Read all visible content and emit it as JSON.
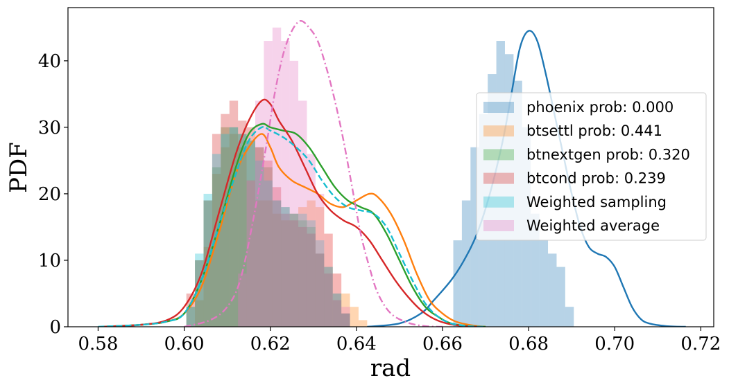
{
  "chart_data": {
    "type": "area",
    "xlabel": "rad",
    "ylabel": "PDF",
    "xlim": [
      0.573,
      0.723
    ],
    "ylim": [
      0,
      48
    ],
    "xticks": [
      "0.58",
      "0.60",
      "0.62",
      "0.64",
      "0.66",
      "0.68",
      "0.70",
      "0.72"
    ],
    "xtick_values": [
      0.58,
      0.6,
      0.62,
      0.64,
      0.66,
      0.68,
      0.7,
      0.72
    ],
    "yticks": [
      "0",
      "10",
      "20",
      "30",
      "40"
    ],
    "ytick_values": [
      0,
      10,
      20,
      30,
      40
    ],
    "legend_position": "center-right",
    "grid": false,
    "series": [
      {
        "name": "phoenix prob: 0.000",
        "color": "#1f77b4",
        "line_style": "solid",
        "bins": {
          "start": 0.6625,
          "width": 0.002,
          "heights": [
            13,
            19,
            27,
            32,
            38,
            43,
            41,
            37,
            30,
            17,
            13,
            11,
            9,
            3
          ]
        },
        "kde": {
          "x": [
            0.6425,
            0.65,
            0.655,
            0.658,
            0.662,
            0.665,
            0.668,
            0.671,
            0.674,
            0.676,
            0.678,
            0.68,
            0.682,
            0.684,
            0.686,
            0.688,
            0.69,
            0.692,
            0.694,
            0.696,
            0.698,
            0.7,
            0.702,
            0.704,
            0.706,
            0.708,
            0.712,
            0.7165
          ],
          "y": [
            0,
            0.5,
            2,
            4,
            7,
            10,
            14,
            20,
            28,
            35,
            42,
            44.5,
            43,
            38,
            32,
            26,
            20,
            15,
            12,
            11,
            10.5,
            9,
            6,
            3,
            1.2,
            0.5,
            0.1,
            0
          ]
        }
      },
      {
        "name": "btsettl prob: 0.441",
        "color": "#ff7f0e",
        "line_style": "solid",
        "bins": {
          "start": 0.6025,
          "width": 0.002,
          "heights": [
            4,
            12,
            23,
            27,
            29,
            27,
            22,
            19,
            19,
            17,
            16,
            17,
            18,
            19,
            18,
            14,
            8,
            5,
            3,
            1
          ]
        },
        "kde": {
          "x": [
            0.581,
            0.59,
            0.596,
            0.6,
            0.604,
            0.608,
            0.612,
            0.615,
            0.618,
            0.62,
            0.622,
            0.625,
            0.628,
            0.631,
            0.634,
            0.637,
            0.64,
            0.643,
            0.645,
            0.648,
            0.651,
            0.654,
            0.657,
            0.66,
            0.663,
            0.667,
            0.67
          ],
          "y": [
            0,
            0.3,
            0.8,
            2,
            6,
            14,
            23,
            27,
            29,
            27,
            24,
            22,
            21,
            20,
            18.5,
            18,
            19,
            20,
            19.5,
            17,
            13,
            8,
            4,
            2,
            0.8,
            0.2,
            0
          ]
        }
      },
      {
        "name": "btnextgen prob: 0.320",
        "color": "#2ca02c",
        "line_style": "solid",
        "bins": {
          "start": 0.6005,
          "width": 0.002,
          "heights": [
            3,
            10,
            19,
            24,
            30,
            30,
            29,
            28,
            27,
            24,
            19,
            18,
            17,
            16,
            15,
            11,
            9,
            5,
            2
          ]
        },
        "kde": {
          "x": [
            0.581,
            0.59,
            0.596,
            0.6,
            0.604,
            0.608,
            0.612,
            0.615,
            0.618,
            0.62,
            0.623,
            0.626,
            0.629,
            0.632,
            0.635,
            0.638,
            0.641,
            0.644,
            0.647,
            0.65,
            0.653,
            0.656,
            0.659,
            0.662,
            0.666,
            0.67
          ],
          "y": [
            0,
            0.3,
            0.8,
            2,
            7,
            15,
            24,
            29,
            30.5,
            30,
            29.5,
            29,
            27,
            24,
            21,
            19,
            18,
            17,
            14,
            10,
            6,
            3,
            1.5,
            0.5,
            0.1,
            0
          ]
        }
      },
      {
        "name": "btcond prob: 0.239",
        "color": "#d62728",
        "line_style": "solid",
        "bins": {
          "start": 0.6005,
          "width": 0.002,
          "heights": [
            5,
            10,
            19,
            29,
            32,
            34,
            31,
            30,
            27,
            25,
            21,
            17,
            16,
            15,
            14,
            11,
            8,
            4,
            2
          ]
        },
        "kde": {
          "x": [
            0.581,
            0.59,
            0.596,
            0.6,
            0.604,
            0.608,
            0.612,
            0.615,
            0.618,
            0.62,
            0.622,
            0.625,
            0.628,
            0.631,
            0.634,
            0.637,
            0.64,
            0.643,
            0.646,
            0.649,
            0.652,
            0.655,
            0.658,
            0.661,
            0.665,
            0.668
          ],
          "y": [
            0,
            0.3,
            1,
            3,
            8,
            17,
            26,
            31,
            34,
            33.5,
            31,
            28,
            24,
            20,
            17.5,
            16,
            15,
            13,
            10,
            7,
            4.5,
            2.5,
            1.2,
            0.5,
            0.1,
            0
          ]
        }
      },
      {
        "name": "Weighted sampling",
        "color": "#17becf",
        "line_style": "dashed",
        "bins": {
          "start": 0.6005,
          "width": 0.002,
          "heights": [
            3,
            11,
            20,
            26,
            29,
            30,
            29,
            28,
            25,
            22,
            19,
            18,
            17,
            17,
            16,
            13,
            9,
            5,
            2
          ]
        },
        "kde": {
          "x": [
            0.58,
            0.59,
            0.596,
            0.6,
            0.604,
            0.608,
            0.612,
            0.615,
            0.618,
            0.62,
            0.623,
            0.626,
            0.629,
            0.632,
            0.635,
            0.638,
            0.641,
            0.644,
            0.647,
            0.65,
            0.653,
            0.656,
            0.659,
            0.662,
            0.666,
            0.67
          ],
          "y": [
            0,
            0.3,
            0.8,
            2,
            7,
            15,
            23,
            28,
            30,
            29.5,
            28.5,
            27,
            25,
            22,
            19.5,
            18,
            17.5,
            17,
            15,
            11,
            7,
            3.5,
            1.5,
            0.5,
            0.1,
            0
          ]
        }
      },
      {
        "name": "Weighted average",
        "color": "#e377c2",
        "line_style": "dashdot",
        "bins": {
          "start": 0.6125,
          "width": 0.002,
          "heights": [
            8,
            22,
            34,
            43,
            45,
            43,
            40,
            34,
            26,
            20,
            14,
            8,
            3
          ]
        },
        "kde": {
          "x": [
            0.6,
            0.606,
            0.61,
            0.613,
            0.616,
            0.619,
            0.621,
            0.623,
            0.625,
            0.627,
            0.629,
            0.631,
            0.633,
            0.635,
            0.637,
            0.639,
            0.641,
            0.643,
            0.645,
            0.648,
            0.652,
            0.656,
            0.66
          ],
          "y": [
            0,
            1,
            3,
            7,
            16,
            27,
            35,
            41,
            44.5,
            46,
            45,
            43,
            39,
            34,
            28,
            21,
            14,
            9,
            5,
            2,
            0.6,
            0.1,
            0
          ]
        }
      }
    ]
  }
}
